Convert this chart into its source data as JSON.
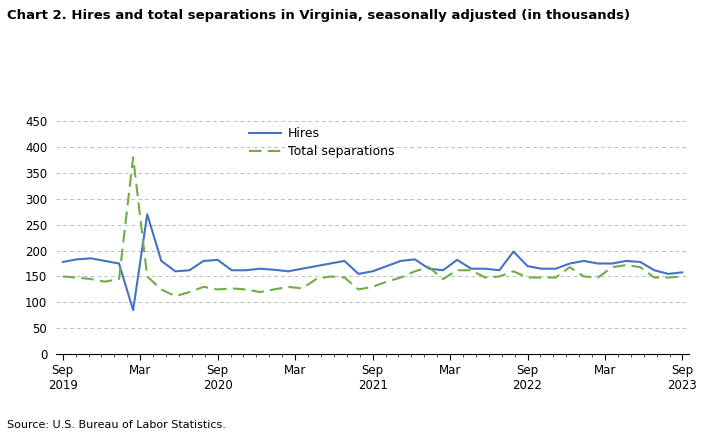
{
  "title": "Chart 2. Hires and total separations in Virginia, seasonally adjusted (in thousands)",
  "source": "Source: U.S. Bureau of Labor Statistics.",
  "hires": [
    178,
    183,
    185,
    180,
    175,
    85,
    270,
    180,
    160,
    162,
    180,
    182,
    162,
    162,
    165,
    163,
    160,
    165,
    170,
    175,
    180,
    155,
    160,
    170,
    180,
    183,
    165,
    162,
    182,
    165,
    165,
    162,
    198,
    170,
    165,
    165,
    175,
    180,
    175,
    175,
    180,
    178,
    162,
    155,
    158
  ],
  "separations": [
    150,
    148,
    145,
    140,
    145,
    380,
    150,
    125,
    112,
    120,
    130,
    125,
    127,
    125,
    120,
    125,
    130,
    127,
    145,
    150,
    148,
    125,
    130,
    140,
    148,
    160,
    168,
    145,
    162,
    162,
    148,
    150,
    160,
    148,
    148,
    148,
    168,
    150,
    148,
    168,
    172,
    168,
    148,
    148,
    150
  ],
  "ylim": [
    0,
    450
  ],
  "yticks": [
    0,
    50,
    100,
    150,
    200,
    250,
    300,
    350,
    400,
    450
  ],
  "hires_color": "#4472C4",
  "separations_color": "#70AD47",
  "background_color": "#ffffff",
  "grid_color": "#c0c0c0"
}
